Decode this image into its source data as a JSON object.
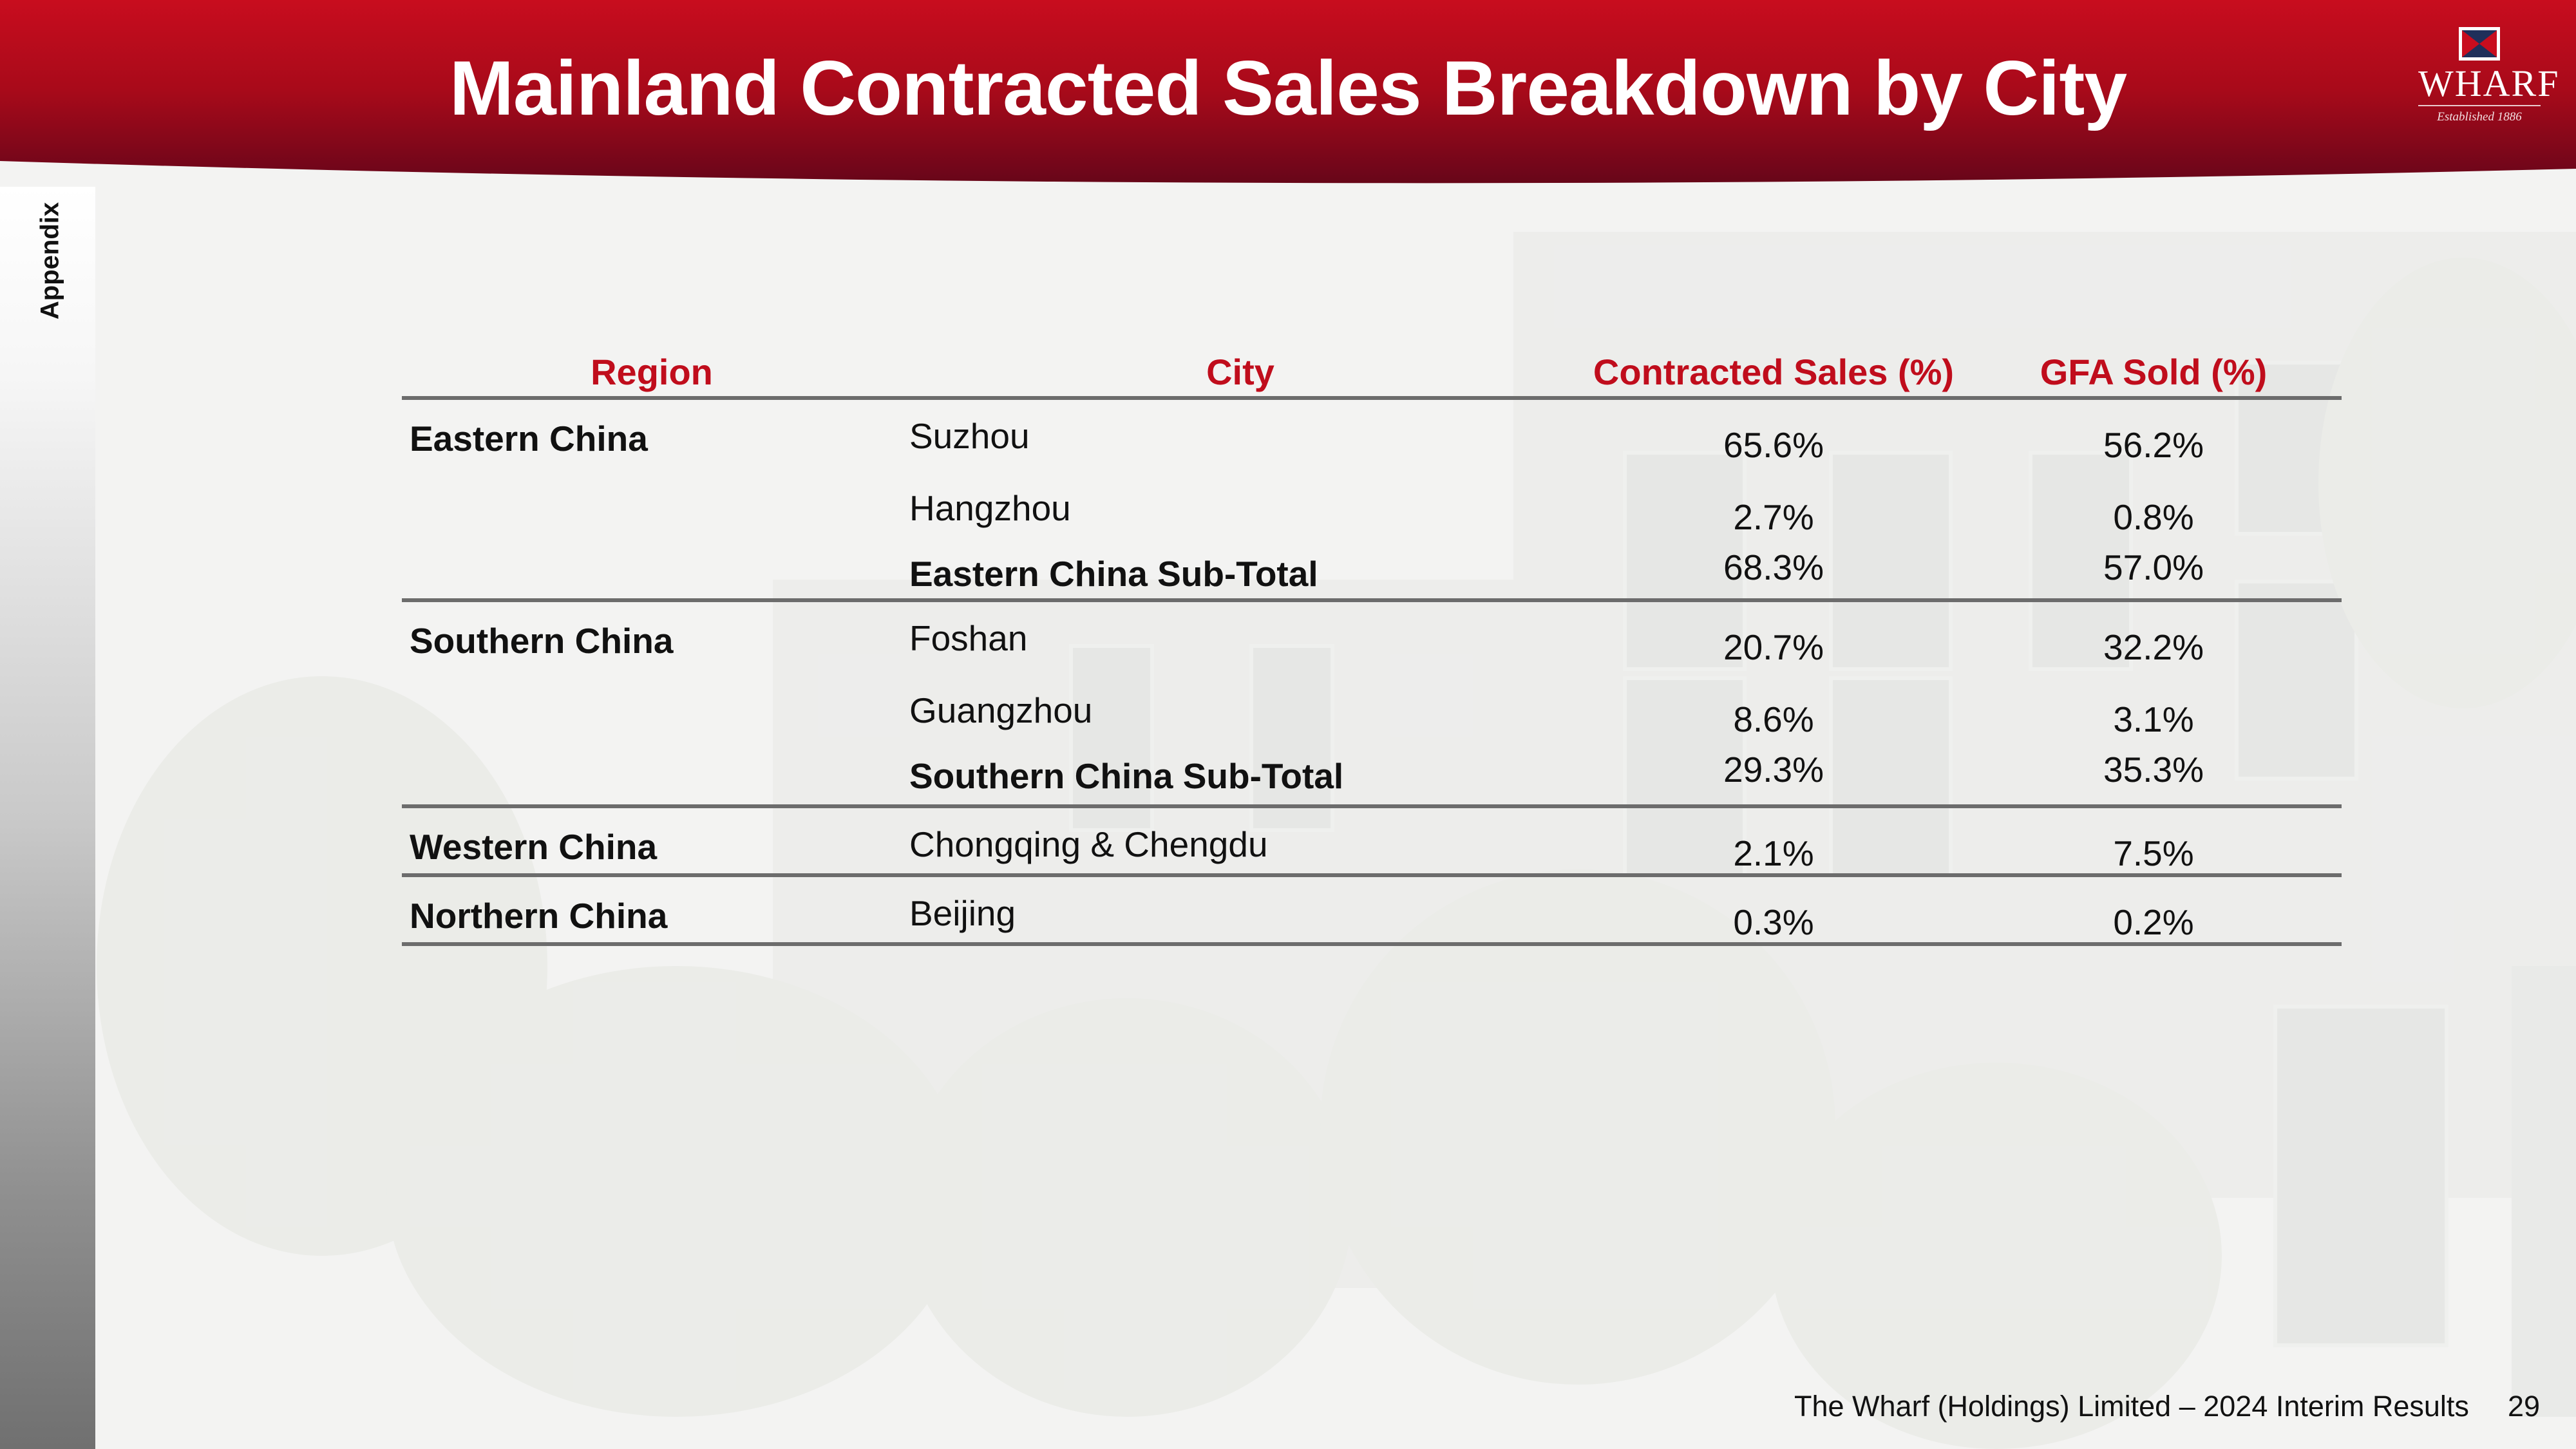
{
  "header": {
    "title": "Mainland Contracted Sales Breakdown by City",
    "logo_text": "WHARF",
    "logo_tagline": "Established 1886"
  },
  "sidebar": {
    "section_label": "Appendix"
  },
  "table": {
    "columns": [
      "Region",
      "City",
      "Contracted Sales (%)",
      "GFA Sold (%)"
    ],
    "groups": [
      {
        "region": "Eastern China",
        "rows": [
          {
            "city": "Suzhou",
            "contracted_sales": "65.6%",
            "gfa_sold": "56.2%"
          },
          {
            "city": "Hangzhou",
            "contracted_sales": "2.7%",
            "gfa_sold": "0.8%"
          },
          {
            "city": "Eastern China Sub-Total",
            "contracted_sales": "68.3%",
            "gfa_sold": "57.0%",
            "subtotal": true
          }
        ]
      },
      {
        "region": "Southern China",
        "rows": [
          {
            "city": "Foshan",
            "contracted_sales": "20.7%",
            "gfa_sold": "32.2%"
          },
          {
            "city": "Guangzhou",
            "contracted_sales": "8.6%",
            "gfa_sold": "3.1%"
          },
          {
            "city": "Southern China Sub-Total",
            "contracted_sales": "29.3%",
            "gfa_sold": "35.3%",
            "subtotal": true
          }
        ]
      },
      {
        "region": "Western China",
        "rows": [
          {
            "city": "Chongqing & Chengdu",
            "contracted_sales": "2.1%",
            "gfa_sold": "7.5%"
          }
        ]
      },
      {
        "region": "Northern China",
        "rows": [
          {
            "city": "Beijing",
            "contracted_sales": "0.3%",
            "gfa_sold": "0.2%"
          }
        ]
      }
    ]
  },
  "footer": {
    "text": "The Wharf (Holdings) Limited – 2024 Interim Results",
    "page_number": "29"
  },
  "colors": {
    "brand_red": "#c80d1e",
    "header_text": "#ffffff",
    "table_header_text": "#c00d1c",
    "rule": "#6c6c6c"
  }
}
